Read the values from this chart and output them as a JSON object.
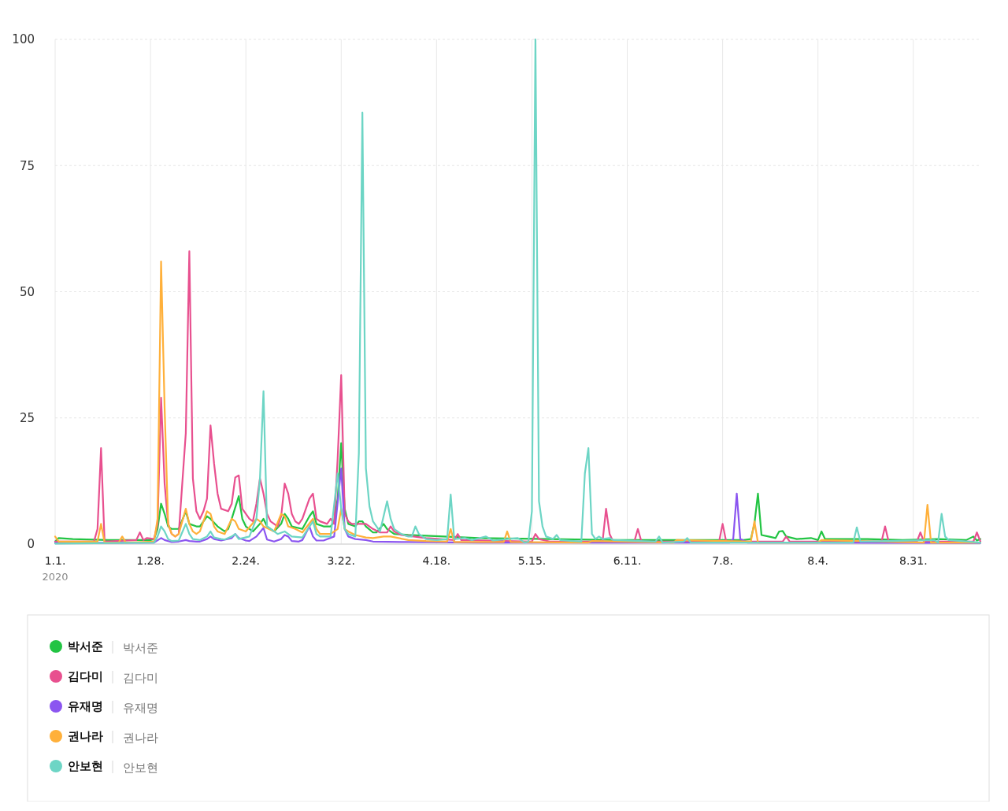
{
  "chart_data": {
    "type": "line",
    "xlim": [
      "2020-01-01",
      "2020-09-19"
    ],
    "xticks": [
      {
        "value": "2020-01-01",
        "label": "1.1."
      },
      {
        "value": "2020-01-28",
        "label": "1.28."
      },
      {
        "value": "2020-02-24",
        "label": "2.24."
      },
      {
        "value": "2020-03-22",
        "label": "3.22."
      },
      {
        "value": "2020-04-18",
        "label": "4.18."
      },
      {
        "value": "2020-05-15",
        "label": "5.15."
      },
      {
        "value": "2020-06-11",
        "label": "6.11."
      },
      {
        "value": "2020-07-08",
        "label": "7.8."
      },
      {
        "value": "2020-08-04",
        "label": "8.4."
      },
      {
        "value": "2020-08-31",
        "label": "8.31."
      }
    ],
    "ylim": [
      0,
      100
    ],
    "yticks": [
      0,
      25,
      50,
      75,
      100
    ],
    "grid": true,
    "legend": "bottom",
    "marker": "none",
    "line_style": "solid",
    "annotations": [
      "2020"
    ],
    "series": [
      {
        "name": "박서준",
        "color": "#22c443",
        "x": [
          "2020-01-01",
          "2020-01-02",
          "2020-01-06",
          "2020-01-16",
          "2020-01-28",
          "2020-01-29",
          "2020-01-30",
          "2020-01-31",
          "2020-02-01",
          "2020-02-02",
          "2020-02-03",
          "2020-02-05",
          "2020-02-07",
          "2020-02-08",
          "2020-02-10",
          "2020-02-11",
          "2020-02-13",
          "2020-02-14",
          "2020-02-16",
          "2020-02-18",
          "2020-02-19",
          "2020-02-20",
          "2020-02-22",
          "2020-02-23",
          "2020-02-24",
          "2020-02-26",
          "2020-02-28",
          "2020-02-29",
          "2020-03-01",
          "2020-03-03",
          "2020-03-05",
          "2020-03-06",
          "2020-03-07",
          "2020-03-08",
          "2020-03-11",
          "2020-03-13",
          "2020-03-14",
          "2020-03-15",
          "2020-03-17",
          "2020-03-19",
          "2020-03-20",
          "2020-03-21",
          "2020-03-22",
          "2020-03-23",
          "2020-03-24",
          "2020-03-26",
          "2020-03-27",
          "2020-03-28",
          "2020-03-29",
          "2020-03-31",
          "2020-04-01",
          "2020-04-03",
          "2020-04-04",
          "2020-04-06",
          "2020-04-10",
          "2020-04-20",
          "2020-04-30",
          "2020-05-20",
          "2020-06-09",
          "2020-06-29",
          "2020-07-14",
          "2020-07-16",
          "2020-07-17",
          "2020-07-18",
          "2020-07-19",
          "2020-07-21",
          "2020-07-23",
          "2020-07-24",
          "2020-07-25",
          "2020-07-26",
          "2020-07-29",
          "2020-08-02",
          "2020-08-04",
          "2020-08-05",
          "2020-08-06",
          "2020-08-18",
          "2020-08-28",
          "2020-09-07",
          "2020-09-15",
          "2020-09-17",
          "2020-09-18",
          "2020-09-19"
        ],
        "values": [
          0.5,
          1.2,
          1,
          0.8,
          0.8,
          1,
          3,
          8,
          6,
          3.5,
          3,
          3,
          6.5,
          4,
          3.5,
          3.5,
          5.5,
          5,
          3.5,
          2.5,
          3,
          5,
          9.5,
          5,
          3.5,
          2.5,
          4,
          5,
          3.5,
          2.5,
          4,
          6,
          5,
          3.5,
          3,
          5.5,
          6.5,
          4,
          3.5,
          3.5,
          4.5,
          9,
          20,
          7,
          4,
          3.5,
          4.5,
          4.5,
          3.5,
          2.3,
          2.3,
          4,
          3,
          2,
          1.8,
          1.5,
          1.2,
          1,
          0.8,
          0.8,
          0.8,
          1,
          4,
          10,
          1.8,
          1.5,
          1.2,
          2.5,
          2.6,
          1.5,
          1,
          1.2,
          0.8,
          2.5,
          1,
          1,
          0.8,
          1,
          0.8,
          1.5,
          0.7,
          1
        ]
      },
      {
        "name": "김다미",
        "color": "#e8508f",
        "x": [
          "2020-01-01",
          "2020-01-12",
          "2020-01-13",
          "2020-01-14",
          "2020-01-15",
          "2020-01-24",
          "2020-01-25",
          "2020-01-26",
          "2020-01-27",
          "2020-01-29",
          "2020-01-30",
          "2020-01-31",
          "2020-02-01",
          "2020-02-02",
          "2020-02-03",
          "2020-02-04",
          "2020-02-05",
          "2020-02-07",
          "2020-02-08",
          "2020-02-09",
          "2020-02-10",
          "2020-02-11",
          "2020-02-12",
          "2020-02-13",
          "2020-02-14",
          "2020-02-15",
          "2020-02-16",
          "2020-02-17",
          "2020-02-19",
          "2020-02-20",
          "2020-02-21",
          "2020-02-22",
          "2020-02-23",
          "2020-02-25",
          "2020-02-26",
          "2020-02-27",
          "2020-02-28",
          "2020-02-29",
          "2020-03-01",
          "2020-03-02",
          "2020-03-04",
          "2020-03-05",
          "2020-03-06",
          "2020-03-07",
          "2020-03-08",
          "2020-03-09",
          "2020-03-10",
          "2020-03-11",
          "2020-03-13",
          "2020-03-14",
          "2020-03-15",
          "2020-03-16",
          "2020-03-18",
          "2020-03-19",
          "2020-03-20",
          "2020-03-21",
          "2020-03-22",
          "2020-03-23",
          "2020-03-24",
          "2020-03-25",
          "2020-03-29",
          "2020-03-31",
          "2020-04-02",
          "2020-04-04",
          "2020-04-05",
          "2020-04-06",
          "2020-04-08",
          "2020-04-15",
          "2020-04-23",
          "2020-04-24",
          "2020-04-25",
          "2020-05-15",
          "2020-05-16",
          "2020-05-17",
          "2020-05-20",
          "2020-06-04",
          "2020-06-05",
          "2020-06-06",
          "2020-06-07",
          "2020-06-13",
          "2020-06-14",
          "2020-06-15",
          "2020-07-07",
          "2020-07-08",
          "2020-07-09",
          "2020-07-25",
          "2020-07-26",
          "2020-07-27",
          "2020-08-22",
          "2020-08-23",
          "2020-08-24",
          "2020-09-01",
          "2020-09-02",
          "2020-09-03",
          "2020-09-17",
          "2020-09-18",
          "2020-09-19"
        ],
        "values": [
          0.5,
          0.5,
          3,
          19,
          0.5,
          0.8,
          2.3,
          0.8,
          1.2,
          1,
          4,
          29,
          12,
          4,
          2,
          1.5,
          2,
          22,
          58,
          13,
          6.5,
          5,
          6.5,
          9,
          23.5,
          16,
          10,
          7,
          6.5,
          8,
          13.2,
          13.6,
          7,
          5,
          4.5,
          8,
          13,
          10,
          6,
          4.5,
          3.5,
          5.5,
          12,
          10,
          6,
          4.5,
          4,
          5,
          9,
          10,
          5,
          4.5,
          4,
          5,
          4,
          17,
          33.5,
          6,
          4.5,
          4,
          4,
          3,
          2.3,
          2.3,
          3.5,
          2.5,
          1.8,
          1.2,
          0.8,
          2,
          0.8,
          0.5,
          2,
          1,
          0.5,
          0.5,
          7,
          2,
          0.5,
          0.5,
          3,
          0.5,
          0.5,
          4,
          0.5,
          0.5,
          1.5,
          0.5,
          0.5,
          3.5,
          0.5,
          0.5,
          2.3,
          0.5,
          0.5,
          2.3,
          0.5
        ]
      },
      {
        "name": "유재명",
        "color": "#8b55f0",
        "x": [
          "2020-01-01",
          "2020-01-29",
          "2020-01-31",
          "2020-02-01",
          "2020-02-03",
          "2020-02-05",
          "2020-02-07",
          "2020-02-08",
          "2020-02-10",
          "2020-02-11",
          "2020-02-13",
          "2020-02-14",
          "2020-02-15",
          "2020-02-17",
          "2020-02-20",
          "2020-02-21",
          "2020-02-22",
          "2020-02-24",
          "2020-02-25",
          "2020-02-27",
          "2020-02-29",
          "2020-03-01",
          "2020-03-03",
          "2020-03-05",
          "2020-03-06",
          "2020-03-07",
          "2020-03-08",
          "2020-03-10",
          "2020-03-11",
          "2020-03-13",
          "2020-03-14",
          "2020-03-15",
          "2020-03-17",
          "2020-03-20",
          "2020-03-22",
          "2020-03-23",
          "2020-03-24",
          "2020-03-26",
          "2020-03-29",
          "2020-03-31",
          "2020-04-10",
          "2020-04-30",
          "2020-05-30",
          "2020-07-10",
          "2020-07-11",
          "2020-07-12",
          "2020-07-13",
          "2020-07-15",
          "2020-09-19"
        ],
        "values": [
          0.2,
          0.3,
          1.2,
          0.8,
          0.4,
          0.5,
          0.8,
          0.6,
          0.5,
          0.5,
          1,
          1.5,
          1,
          0.7,
          1.2,
          2,
          1.2,
          0.7,
          0.6,
          1.5,
          3.2,
          0.9,
          0.5,
          1,
          1.8,
          1.5,
          0.6,
          0.5,
          0.8,
          3.5,
          1.5,
          0.7,
          0.7,
          1.5,
          15,
          3,
          1.5,
          1,
          0.8,
          0.5,
          0.4,
          0.3,
          0.3,
          0.3,
          1,
          10,
          1,
          0.3,
          0.2
        ]
      },
      {
        "name": "권나라",
        "color": "#ffb03a",
        "x": [
          "2020-01-01",
          "2020-01-02",
          "2020-01-13",
          "2020-01-14",
          "2020-01-15",
          "2020-01-19",
          "2020-01-20",
          "2020-01-21",
          "2020-01-29",
          "2020-01-30",
          "2020-01-31",
          "2020-02-01",
          "2020-02-02",
          "2020-02-03",
          "2020-02-04",
          "2020-02-05",
          "2020-02-07",
          "2020-02-08",
          "2020-02-09",
          "2020-02-10",
          "2020-02-11",
          "2020-02-13",
          "2020-02-14",
          "2020-02-15",
          "2020-02-16",
          "2020-02-18",
          "2020-02-20",
          "2020-02-21",
          "2020-02-22",
          "2020-02-24",
          "2020-02-27",
          "2020-02-28",
          "2020-02-29",
          "2020-03-03",
          "2020-03-05",
          "2020-03-06",
          "2020-03-07",
          "2020-03-09",
          "2020-03-11",
          "2020-03-14",
          "2020-03-15",
          "2020-03-16",
          "2020-03-19",
          "2020-03-21",
          "2020-03-22",
          "2020-03-23",
          "2020-03-24",
          "2020-03-26",
          "2020-03-29",
          "2020-03-31",
          "2020-04-03",
          "2020-04-05",
          "2020-04-10",
          "2020-04-15",
          "2020-04-21",
          "2020-04-22",
          "2020-04-23",
          "2020-05-07",
          "2020-05-08",
          "2020-05-09",
          "2020-05-31",
          "2020-06-01",
          "2020-06-24",
          "2020-06-25",
          "2020-07-16",
          "2020-07-17",
          "2020-07-18",
          "2020-08-04",
          "2020-08-05",
          "2020-09-03",
          "2020-09-04",
          "2020-09-05",
          "2020-09-19"
        ],
        "values": [
          1.5,
          0.5,
          0.5,
          4,
          0.3,
          0.3,
          1.5,
          0.3,
          0.5,
          5,
          56,
          27,
          4,
          2,
          1.5,
          2,
          7,
          4,
          2.5,
          2,
          2.5,
          6.5,
          6,
          3.5,
          2.5,
          2,
          5,
          4.5,
          3,
          2.5,
          5,
          4.5,
          3.5,
          2.5,
          6,
          5.5,
          3.5,
          3,
          2.3,
          5,
          3,
          2,
          2,
          3,
          7,
          3,
          2.5,
          1.8,
          1.3,
          1.2,
          1.5,
          1.5,
          0.8,
          0.6,
          0.5,
          3,
          0.4,
          0.4,
          2.5,
          0.4,
          0.3,
          0.6,
          0.3,
          0.8,
          0.5,
          4.5,
          0.3,
          0.3,
          0.8,
          0.3,
          7.8,
          0.3,
          0.3
        ]
      },
      {
        "name": "안보현",
        "color": "#6dd5c5",
        "x": [
          "2020-01-01",
          "2020-01-29",
          "2020-01-30",
          "2020-01-31",
          "2020-02-01",
          "2020-02-02",
          "2020-02-03",
          "2020-02-05",
          "2020-02-07",
          "2020-02-08",
          "2020-02-09",
          "2020-02-11",
          "2020-02-13",
          "2020-02-14",
          "2020-02-15",
          "2020-02-17",
          "2020-02-18",
          "2020-02-20",
          "2020-02-21",
          "2020-02-22",
          "2020-02-25",
          "2020-02-27",
          "2020-02-28",
          "2020-02-29",
          "2020-03-01",
          "2020-03-03",
          "2020-03-04",
          "2020-03-06",
          "2020-03-08",
          "2020-03-11",
          "2020-03-14",
          "2020-03-15",
          "2020-03-16",
          "2020-03-19",
          "2020-03-21",
          "2020-03-22",
          "2020-03-23",
          "2020-03-24",
          "2020-03-26",
          "2020-03-27",
          "2020-03-28",
          "2020-03-29",
          "2020-03-30",
          "2020-03-31",
          "2020-04-01",
          "2020-04-02",
          "2020-04-04",
          "2020-04-05",
          "2020-04-06",
          "2020-04-08",
          "2020-04-10",
          "2020-04-11",
          "2020-04-12",
          "2020-04-13",
          "2020-04-15",
          "2020-04-18",
          "2020-04-21",
          "2020-04-22",
          "2020-04-23",
          "2020-04-26",
          "2020-04-28",
          "2020-05-02",
          "2020-05-04",
          "2020-05-11",
          "2020-05-13",
          "2020-05-14",
          "2020-05-15",
          "2020-05-16",
          "2020-05-17",
          "2020-05-18",
          "2020-05-19",
          "2020-05-21",
          "2020-05-22",
          "2020-05-23",
          "2020-05-29",
          "2020-05-30",
          "2020-05-31",
          "2020-06-01",
          "2020-06-02",
          "2020-06-03",
          "2020-06-04",
          "2020-06-06",
          "2020-06-07",
          "2020-06-19",
          "2020-06-20",
          "2020-06-21",
          "2020-06-27",
          "2020-06-28",
          "2020-06-29",
          "2020-08-14",
          "2020-08-15",
          "2020-08-16",
          "2020-09-06",
          "2020-09-07",
          "2020-09-08",
          "2020-09-09",
          "2020-09-10",
          "2020-09-19"
        ],
        "values": [
          0.1,
          0.3,
          1.5,
          3.5,
          2.5,
          1,
          0.6,
          0.7,
          4,
          2,
          1,
          0.8,
          1.5,
          2.5,
          1.3,
          1,
          0.9,
          1.5,
          2,
          1,
          1.5,
          5,
          13,
          30.3,
          3.5,
          2.5,
          2,
          2.5,
          1.5,
          1.3,
          4.5,
          2,
          1.5,
          1.5,
          14,
          7,
          3,
          2,
          1.5,
          18,
          85.5,
          15,
          7.5,
          4.5,
          3.5,
          2.5,
          8.5,
          5,
          3,
          2,
          1.5,
          1.5,
          3.5,
          2,
          1,
          0.8,
          1,
          9.8,
          1,
          1.2,
          0.8,
          1.5,
          0.7,
          1.2,
          0.3,
          0.5,
          6.5,
          100,
          8.5,
          3.5,
          1.5,
          1,
          1.8,
          0.8,
          0.5,
          14,
          19,
          2,
          1,
          1.5,
          1,
          1.2,
          0.8,
          0.5,
          1.5,
          0.3,
          0.5,
          1.2,
          0.3,
          0.3,
          3.3,
          0.5,
          0.8,
          0.3,
          6,
          1.5,
          0.8,
          0.3
        ]
      }
    ]
  }
}
